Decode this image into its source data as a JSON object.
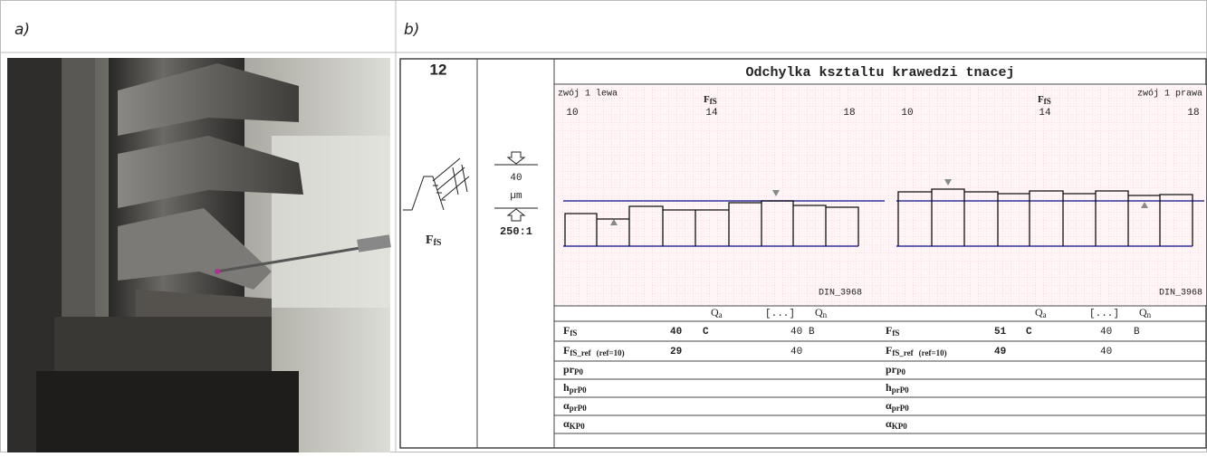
{
  "panel_a": {
    "label": "a)"
  },
  "panel_b": {
    "label": "b)",
    "number": "12",
    "symbol": {
      "main": "F",
      "sub": "fS"
    },
    "scale": {
      "value": "40",
      "unit": "µm",
      "ratio": "250:1"
    },
    "title": "Odchylka ksztaltu krawedzi tnacej",
    "left": {
      "label": "zwój 1 lewa",
      "symbol": {
        "main": "F",
        "sub": "fS"
      },
      "ticks": [
        "10",
        "14",
        "18"
      ],
      "standard": "DIN_3968"
    },
    "right": {
      "label": "zwój 1 prawa",
      "symbol": {
        "main": "F",
        "sub": "fS"
      },
      "ticks": [
        "10",
        "14",
        "18"
      ],
      "standard": "DIN_3968"
    },
    "table": {
      "left": {
        "header": {
          "qa": {
            "main": "Q",
            "sub": "a"
          },
          "dots": "[...]",
          "qn": {
            "main": "Q",
            "sub": "n"
          }
        },
        "rows": [
          {
            "name": {
              "main": "F",
              "sub": "fS"
            },
            "value": "40",
            "value_color": "#e02020",
            "class": "C",
            "limit": "40",
            "limit_class": "B"
          },
          {
            "name": {
              "main": "F",
              "sub": "fS_ref",
              "note": "(ref=10)"
            },
            "value": "29",
            "limit": "40"
          },
          {
            "name": {
              "main": "pr",
              "sub": "P0"
            }
          },
          {
            "name": {
              "main": "h",
              "sub": "prP0"
            }
          },
          {
            "name": {
              "main": "α",
              "sub": "prP0"
            }
          },
          {
            "name": {
              "main": "α",
              "sub": "KP0"
            }
          }
        ]
      },
      "right": {
        "header": {
          "qa": {
            "main": "Q",
            "sub": "a"
          },
          "dots": "[...]",
          "qn": {
            "main": "Q",
            "sub": "n"
          }
        },
        "rows": [
          {
            "name": {
              "main": "F",
              "sub": "fS"
            },
            "value": "51",
            "value_color": "#e02020",
            "class": "C",
            "limit": "40",
            "limit_class": "B"
          },
          {
            "name": {
              "main": "F",
              "sub": "fS_ref",
              "note": "(ref=10)"
            },
            "value": "49",
            "value_color": "#e02020",
            "limit": "40"
          },
          {
            "name": {
              "main": "pr",
              "sub": "P0"
            }
          },
          {
            "name": {
              "main": "h",
              "sub": "prP0"
            }
          },
          {
            "name": {
              "main": "α",
              "sub": "prP0"
            }
          },
          {
            "name": {
              "main": "α",
              "sub": "KP0"
            }
          }
        ]
      }
    }
  }
}
